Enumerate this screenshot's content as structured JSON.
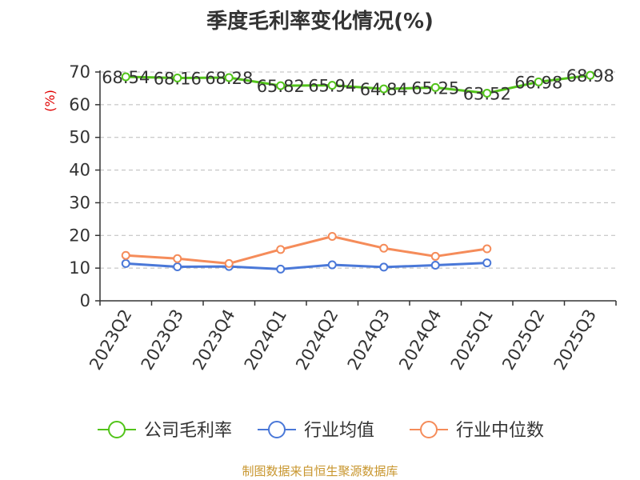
{
  "title": "季度毛利率变化情况(%)",
  "source": "制图数据来自恒生聚源数据库",
  "chart_data": {
    "type": "line",
    "title": "季度毛利率变化情况(%)",
    "ylabel": "(%)",
    "xlabel": "",
    "ylim": [
      0,
      70
    ],
    "yticks": [
      0,
      10,
      20,
      30,
      40,
      50,
      60,
      70
    ],
    "grid": true,
    "legend_position": "bottom",
    "categories": [
      "2023Q2",
      "2023Q3",
      "2023Q4",
      "2024Q1",
      "2024Q2",
      "2024Q3",
      "2024Q4",
      "2025Q1",
      "2025Q2",
      "2025Q3"
    ],
    "series": [
      {
        "name": "公司毛利率",
        "color": "#52c41a",
        "values": [
          68.54,
          68.16,
          68.28,
          65.82,
          65.94,
          64.84,
          65.25,
          63.52,
          66.98,
          68.98
        ],
        "labels": [
          "68.54",
          "68.16",
          "68.28",
          "65.82",
          "65.94",
          "64.84",
          "65.25",
          "63.52",
          "66.98",
          "68.98"
        ]
      },
      {
        "name": "行业均值",
        "color": "#4a78d8",
        "values": [
          11.4,
          10.4,
          10.5,
          9.7,
          11.0,
          10.3,
          10.9,
          11.6,
          null,
          null
        ]
      },
      {
        "name": "行业中位数",
        "color": "#f58c5a",
        "values": [
          13.9,
          12.9,
          11.4,
          15.7,
          19.7,
          16.1,
          13.6,
          15.9,
          null,
          null
        ]
      }
    ]
  }
}
